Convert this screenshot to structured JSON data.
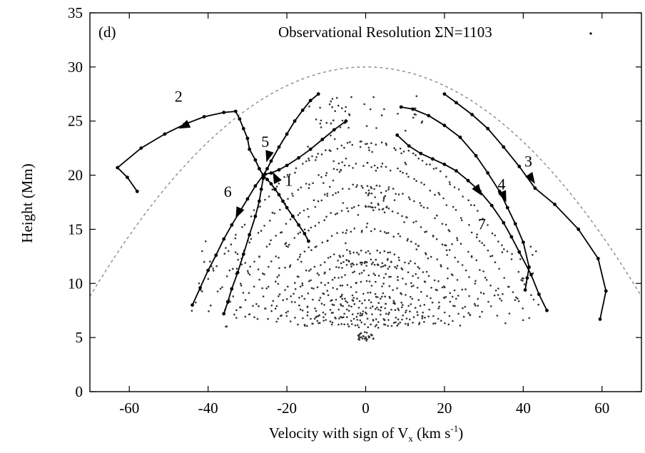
{
  "chart_data": {
    "type": "scatter",
    "panel_label": "(d)",
    "annotation": "Observational Resolution ΣN=1103",
    "xlabel": "Velocity with sign of V",
    "xlabel_sub": "x",
    "xlabel_unit_open": " (km s",
    "xlabel_sup": "-1",
    "xlabel_unit_close": ")",
    "ylabel": "Height (Mm)",
    "xlim": [
      -70,
      70
    ],
    "ylim": [
      0,
      35
    ],
    "xticks": [
      -60,
      -40,
      -20,
      0,
      20,
      40,
      60
    ],
    "yticks": [
      0,
      5,
      10,
      15,
      20,
      25,
      30,
      35
    ],
    "xtick_labels": [
      "-60",
      "-40",
      "-20",
      "0",
      "20",
      "40",
      "60"
    ],
    "ytick_labels": [
      "0",
      "5",
      "10",
      "15",
      "20",
      "25",
      "30",
      "35"
    ],
    "grid": false,
    "envelope": {
      "style": "dashed",
      "x": [
        -70,
        -60,
        -50,
        -40,
        -30,
        -20,
        -10,
        0,
        10,
        20,
        30,
        40,
        50,
        60,
        70
      ],
      "y": [
        8.8,
        13.8,
        18.3,
        22.1,
        25.3,
        27.8,
        29.5,
        30.0,
        29.5,
        27.8,
        25.3,
        22.1,
        18.3,
        13.8,
        8.8
      ]
    },
    "trajectories": [
      {
        "label": "1",
        "label_at": [
          -19.5,
          19.0
        ],
        "x": [
          -14.5,
          -15.5,
          -17,
          -18.5,
          -20,
          -21,
          -22,
          -23,
          -24,
          -25,
          -26
        ],
        "y": [
          13.9,
          14.6,
          15.4,
          16.2,
          17.0,
          17.6,
          18.2,
          18.7,
          19.2,
          19.6,
          20.0
        ],
        "arrows": [
          {
            "from": [
              -21.2,
              18.6
            ],
            "to": [
              -23.6,
              20.3
            ]
          }
        ]
      },
      {
        "label": "2",
        "label_at": [
          -47.5,
          26.8
        ],
        "x": [
          -58,
          -60.5,
          -63,
          -57,
          -51,
          -46,
          -41,
          -36,
          -33,
          -32,
          -31,
          -30,
          -29.5,
          -28,
          -27,
          -26
        ],
        "y": [
          18.5,
          19.8,
          20.7,
          22.5,
          23.8,
          24.7,
          25.4,
          25.8,
          25.9,
          25.2,
          24.3,
          23.4,
          22.4,
          21.4,
          20.6,
          20.0
        ],
        "arrows": [
          {
            "from": [
              -43.5,
              25.0
            ],
            "to": [
              -47.5,
              24.3
            ]
          }
        ]
      },
      {
        "label": "3",
        "label_at": [
          41.3,
          20.8
        ],
        "x": [
          20,
          23,
          27,
          31,
          35,
          39,
          43,
          48,
          54,
          59,
          61,
          59.5
        ],
        "y": [
          27.5,
          26.7,
          25.6,
          24.3,
          22.6,
          20.8,
          18.8,
          17.3,
          15.0,
          12.3,
          9.3,
          6.7
        ],
        "arrows": [
          {
            "from": [
              40.5,
              20.6
            ],
            "to": [
              43.0,
              19.2
            ]
          }
        ]
      },
      {
        "label": "4",
        "label_at": [
          34.5,
          18.7
        ],
        "x": [
          9,
          12,
          16,
          20,
          24,
          28,
          31,
          34,
          36,
          38,
          40,
          41.5,
          41,
          40.5
        ],
        "y": [
          26.3,
          26.1,
          25.5,
          24.6,
          23.5,
          21.8,
          20.2,
          18.5,
          17.0,
          15.5,
          13.8,
          11.5,
          10.5,
          9.4
        ],
        "arrows": [
          {
            "from": [
              34.0,
              19.0
            ],
            "to": [
              35.7,
              17.5
            ]
          }
        ]
      },
      {
        "label": "5",
        "label_at": [
          -25.5,
          22.6
        ],
        "x": [
          -12,
          -14,
          -16,
          -18,
          -20,
          -22,
          -24,
          -25,
          -26
        ],
        "y": [
          27.5,
          26.9,
          26.0,
          25.0,
          23.8,
          22.6,
          21.3,
          20.6,
          20.0
        ],
        "arrows": [
          {
            "from": [
              -24.2,
              22.4
            ],
            "to": [
              -25.2,
              21.2
            ]
          }
        ]
      },
      {
        "label": "6",
        "label_at": [
          -35.0,
          18.0
        ],
        "x": [
          -26,
          -28,
          -30,
          -32,
          -34,
          -36,
          -38,
          -40,
          -42,
          -44
        ],
        "y": [
          20.0,
          19.0,
          17.8,
          16.6,
          15.4,
          14.1,
          12.6,
          11.2,
          9.6,
          8.0
        ],
        "arrows": [
          {
            "from": [
              -31.0,
              17.6
            ],
            "to": [
              -33.0,
              16.0
            ]
          }
        ]
      },
      {
        "label": "7",
        "label_at": [
          29.5,
          15.0
        ],
        "x": [
          -5,
          -8,
          -11,
          -14,
          -17,
          -20,
          -22,
          -24,
          -25.5,
          -26,
          -26.5,
          -27,
          -28,
          -29.5,
          -31,
          -32.5,
          -34,
          -35,
          -36
        ],
        "y": [
          25.0,
          24.2,
          23.3,
          22.4,
          21.6,
          20.9,
          20.5,
          20.2,
          20.1,
          19.7,
          18.7,
          17.6,
          16.2,
          14.5,
          12.7,
          11.0,
          9.5,
          8.3,
          7.2
        ],
        "arrows": []
      },
      {
        "label": "",
        "label_at": null,
        "x": [
          8,
          11,
          14,
          17,
          20,
          23,
          26,
          29,
          32,
          35,
          37,
          39,
          42,
          44,
          46
        ],
        "y": [
          23.7,
          22.7,
          22.0,
          21.5,
          21.0,
          20.4,
          19.5,
          18.5,
          17.2,
          15.6,
          14.3,
          12.9,
          10.8,
          9.0,
          7.5
        ],
        "arrows": [
          {
            "from": [
              27.0,
              19.4
            ],
            "to": [
              29.5,
              18.1
            ]
          }
        ]
      }
    ],
    "scatter_points_total": 1103
  }
}
